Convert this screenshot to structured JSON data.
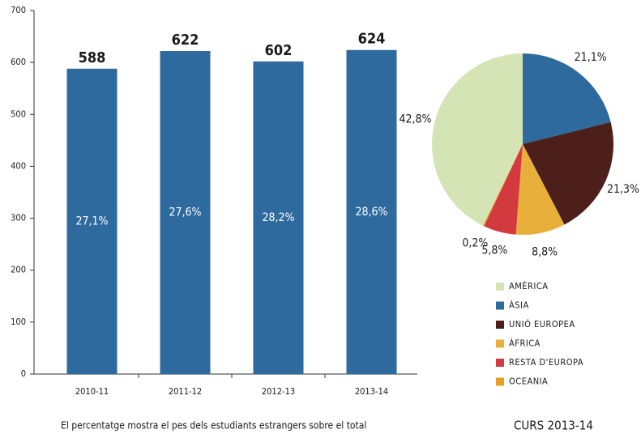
{
  "chart_data": [
    {
      "type": "bar",
      "categories": [
        "2010-11",
        "2011-12",
        "2012-13",
        "2013-14"
      ],
      "values": [
        588,
        622,
        602,
        624
      ],
      "annotations": [
        "27,1%",
        "27,6%",
        "28,2%",
        "28,6%"
      ],
      "color": "#2e6a9e",
      "ylim": [
        0,
        700
      ],
      "yticks": [
        0,
        100,
        200,
        300,
        400,
        500,
        600,
        700
      ],
      "grid": false,
      "footnote": "El percentatge mostra el pes dels estudiants estrangers sobre el total"
    },
    {
      "type": "pie",
      "title": "CURS 2013-14",
      "categories": [
        "AMÈRICA",
        "ÀSIA",
        "UNIÓ EUROPEA",
        "ÀFRICA",
        "RESTA D'EUROPA",
        "OCEANIA"
      ],
      "values": [
        42.8,
        21.1,
        21.3,
        8.8,
        5.8,
        0.2
      ],
      "value_labels": [
        "42,8%",
        "21,1%",
        "21,3%",
        "8,8%",
        "5,8%",
        "0,2%"
      ],
      "colors": [
        "#d5e4b5",
        "#2e6a9e",
        "#4d1f1a",
        "#e8b03a",
        "#d23a3f",
        "#e8a020"
      ]
    }
  ]
}
